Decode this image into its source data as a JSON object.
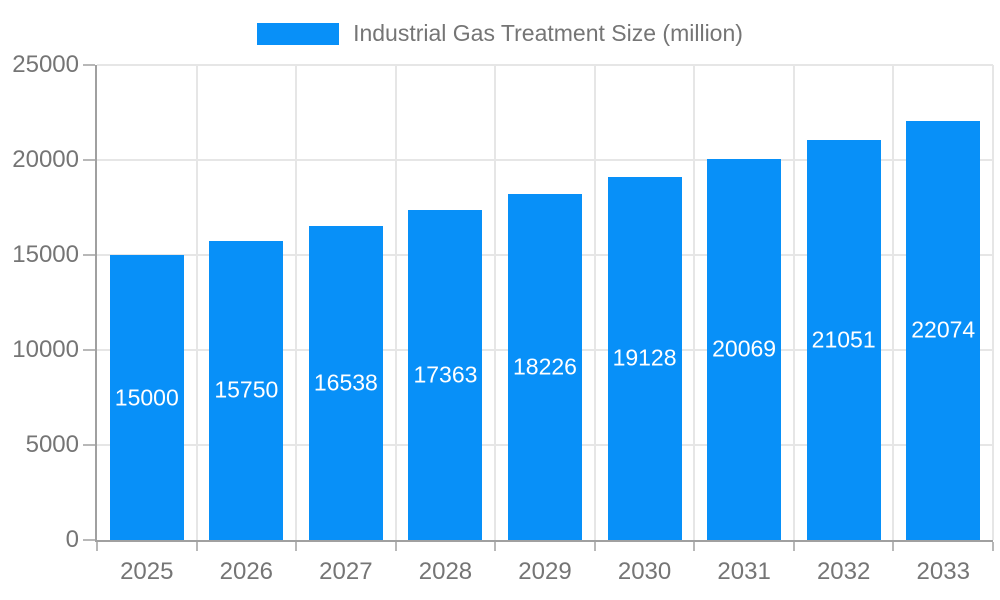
{
  "chart_data": {
    "type": "bar",
    "title": "Industrial Gas Treatment Size (million)",
    "categories": [
      "2025",
      "2026",
      "2027",
      "2028",
      "2029",
      "2030",
      "2031",
      "2032",
      "2033"
    ],
    "values": [
      15000,
      15750,
      16538,
      17363,
      18226,
      19128,
      20069,
      21051,
      22074
    ],
    "xlabel": "",
    "ylabel": "",
    "ylim": [
      0,
      25000
    ],
    "yticks": [
      0,
      5000,
      10000,
      15000,
      20000,
      25000
    ],
    "grid": true,
    "legend_position": "top-center",
    "value_labels": "inside-middle"
  },
  "legend": {
    "label": "Industrial Gas Treatment Size (million)"
  },
  "colors": {
    "bar": "#0890f8",
    "axis_line": "#a0a0a0",
    "gridline": "#e6e6e6",
    "tick": "#b8b8b8",
    "axis_text": "#757575",
    "legend_text": "#757575",
    "value_label": "#ffffff",
    "background": "#ffffff"
  }
}
